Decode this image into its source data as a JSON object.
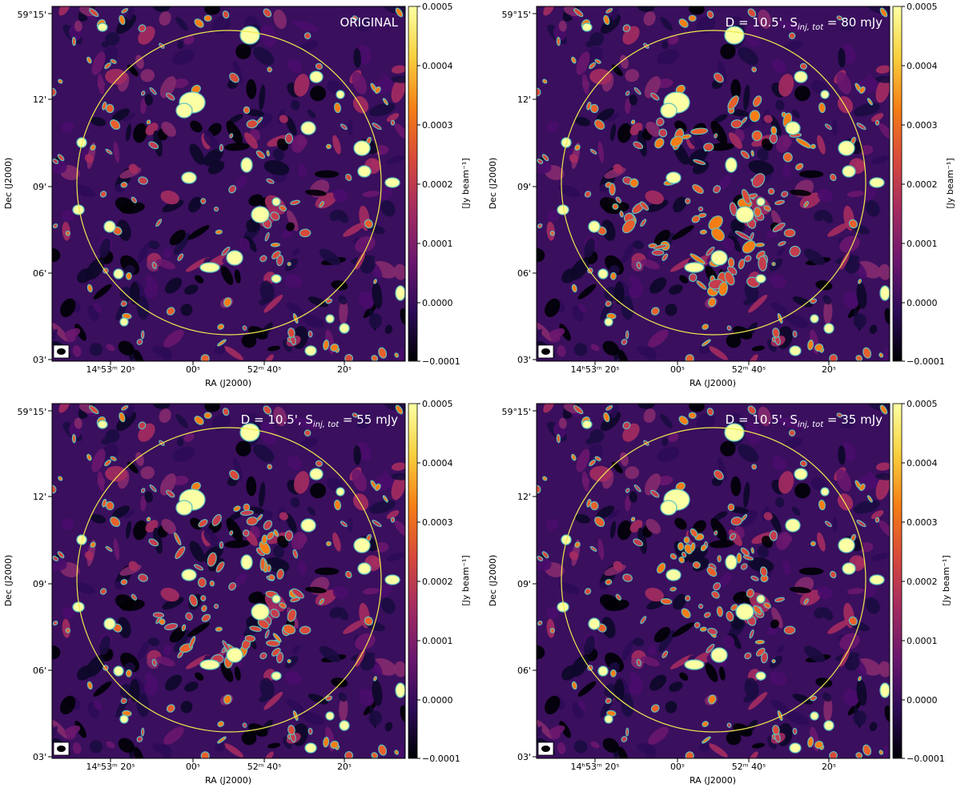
{
  "colorbar": {
    "label": "[Jy beam⁻¹]",
    "tick_labels": [
      "0.0005",
      "0.0004",
      "0.0003",
      "0.0002",
      "0.0001",
      "0.0000",
      "−0.0001"
    ],
    "colormap_stops": [
      "#000004",
      "#2c0b57",
      "#6a176e",
      "#a52c60",
      "#d84a3b",
      "#f57d15",
      "#f8d13f",
      "#fcffa4"
    ]
  },
  "axes": {
    "xlabel": "RA (J2000)",
    "ylabel": "Dec (J2000)",
    "x_tick_labels": [
      "14ʰ53ᵐ 20ˢ",
      "00ˢ",
      "52ᵐ 40ˢ",
      "20ˢ"
    ],
    "y_tick_labels": [
      "59°15'",
      "12'",
      "09'",
      "06'",
      "03'"
    ]
  },
  "circle_color": "#f2e94e",
  "contour_color": "#5fc4c0",
  "panels": [
    {
      "id": "original",
      "label": "ORIGINAL",
      "is_original": true
    },
    {
      "id": "inj80",
      "label_prefix": "D = 10.5', S",
      "label_sub": "inj, tot",
      "label_suffix": " = 80 mJy",
      "is_original": false
    },
    {
      "id": "inj55",
      "label_prefix": "D = 10.5', S",
      "label_sub": "inj, tot",
      "label_suffix": " = 55 mJy",
      "is_original": false
    },
    {
      "id": "inj35",
      "label_prefix": "D = 10.5', S",
      "label_sub": "inj, tot",
      "label_suffix": " = 35 mJy",
      "is_original": false
    }
  ]
}
